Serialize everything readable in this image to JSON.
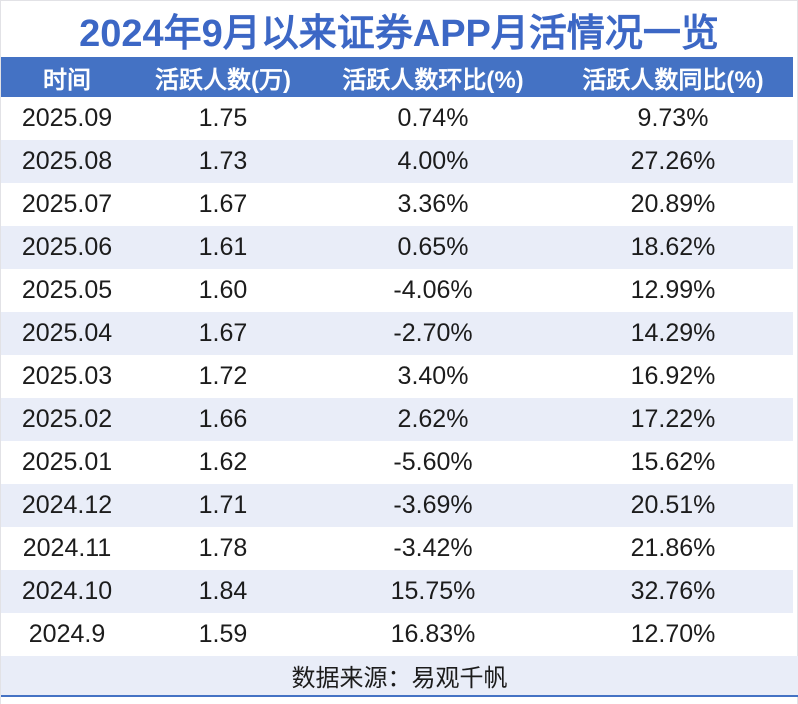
{
  "page": {
    "title": "2024年9月以来证券APP月活情况一览",
    "source_note": "数据来源：易观千帆"
  },
  "colors": {
    "title_text": "#3C67C5",
    "header_bg": "#4472C4",
    "header_text": "#FFFFFF",
    "alt_row_bg": "#E9EDF8",
    "body_text": "#1C1C1C",
    "bottom_rule": "#4472C4",
    "page_border": "#E2E2E6"
  },
  "chart_data": {
    "type": "table",
    "title": "2024年9月以来证券APP月活情况一览",
    "columns": [
      "时间",
      "活跃人数(万)",
      "活跃人数环比(%)",
      "活跃人数同比(%)"
    ],
    "rows": [
      [
        "2025.09",
        "1.75",
        "0.74%",
        "9.73%"
      ],
      [
        "2025.08",
        "1.73",
        "4.00%",
        "27.26%"
      ],
      [
        "2025.07",
        "1.67",
        "3.36%",
        "20.89%"
      ],
      [
        "2025.06",
        "1.61",
        "0.65%",
        "18.62%"
      ],
      [
        "2025.05",
        "1.60",
        "-4.06%",
        "12.99%"
      ],
      [
        "2025.04",
        "1.67",
        "-2.70%",
        "14.29%"
      ],
      [
        "2025.03",
        "1.72",
        "3.40%",
        "16.92%"
      ],
      [
        "2025.02",
        "1.66",
        "2.62%",
        "17.22%"
      ],
      [
        "2025.01",
        "1.62",
        "-5.60%",
        "15.62%"
      ],
      [
        "2024.12",
        "1.71",
        "-3.69%",
        "20.51%"
      ],
      [
        "2024.11",
        "1.78",
        "-3.42%",
        "21.86%"
      ],
      [
        "2024.10",
        "1.84",
        "15.75%",
        "32.76%"
      ],
      [
        "2024.9",
        "1.59",
        "16.83%",
        "12.70%"
      ]
    ],
    "source_note": "数据来源：易观千帆",
    "layout_hints": {
      "alternating_rows": true,
      "first_data_row_bg": "white",
      "all_cells_centered": true,
      "gridlines": false
    }
  }
}
